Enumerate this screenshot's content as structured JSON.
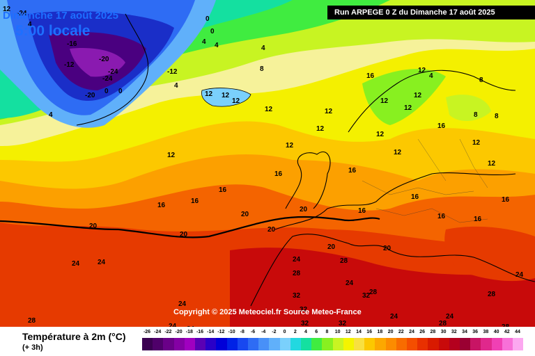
{
  "header": {
    "date": "Dimanche 17 août 2025",
    "time": "5:00 locale",
    "run": "Run ARPEGE 0 Z du Dimanche 17 août 2025"
  },
  "copyright": "Copyright © 2025 Meteociel.fr Source Meteo-France",
  "legend": {
    "title": "Température à 2m (°C)",
    "subtitle": "(+ 3h)",
    "ticks": [
      "-26",
      "-24",
      "-22",
      "-20",
      "-18",
      "-16",
      "-14",
      "-12",
      "-10",
      "-8",
      "-6",
      "-4",
      "-2",
      "0",
      "2",
      "4",
      "6",
      "8",
      "10",
      "12",
      "14",
      "16",
      "18",
      "20",
      "22",
      "24",
      "26",
      "28",
      "30",
      "32",
      "34",
      "36",
      "38",
      "40",
      "42",
      "44"
    ],
    "colors": [
      "#3a0050",
      "#4f006a",
      "#6a0088",
      "#8400a4",
      "#a000c0",
      "#5a00b4",
      "#2a00c8",
      "#0000d8",
      "#0022e6",
      "#1848f0",
      "#2e6cf4",
      "#4890f8",
      "#60b0fa",
      "#7ad0fc",
      "#22d8e0",
      "#14e0a0",
      "#40ec40",
      "#88f020",
      "#c8f422",
      "#f4f400",
      "#f8e040",
      "#fcc800",
      "#fca800",
      "#fc8c00",
      "#f86c00",
      "#f44e00",
      "#e83000",
      "#d81a00",
      "#c80a0a",
      "#b4001e",
      "#9a0032",
      "#c81464",
      "#e0288c",
      "#f040b4",
      "#f870d8",
      "#fca8f0"
    ]
  },
  "map_labels": [
    {
      "t": "12"
    },
    {
      "t": "-24"
    },
    {
      "t": "4"
    },
    {
      "t": "0"
    },
    {
      "t": "0"
    },
    {
      "t": "4"
    },
    {
      "t": "4"
    },
    {
      "t": "4"
    },
    {
      "t": "-16"
    },
    {
      "t": "-20"
    },
    {
      "t": "-12"
    },
    {
      "t": "-24"
    },
    {
      "t": "-24"
    },
    {
      "t": "-12"
    },
    {
      "t": "0"
    },
    {
      "t": "-20"
    },
    {
      "t": "0"
    },
    {
      "t": "4"
    },
    {
      "t": "8"
    },
    {
      "t": "4"
    },
    {
      "t": "12"
    },
    {
      "t": "12"
    },
    {
      "t": "12"
    },
    {
      "t": "12"
    },
    {
      "t": "12"
    },
    {
      "t": "12"
    },
    {
      "t": "12"
    },
    {
      "t": "12"
    },
    {
      "t": "12"
    },
    {
      "t": "12"
    },
    {
      "t": "12"
    },
    {
      "t": "12"
    },
    {
      "t": "16"
    },
    {
      "t": "16"
    },
    {
      "t": "16"
    },
    {
      "t": "16"
    },
    {
      "t": "16"
    },
    {
      "t": "16"
    },
    {
      "t": "16"
    },
    {
      "t": "16"
    },
    {
      "t": "16"
    },
    {
      "t": "16"
    },
    {
      "t": "20"
    },
    {
      "t": "20"
    },
    {
      "t": "20"
    },
    {
      "t": "20"
    },
    {
      "t": "20"
    },
    {
      "t": "20"
    },
    {
      "t": "20"
    },
    {
      "t": "24"
    },
    {
      "t": "24"
    },
    {
      "t": "24"
    },
    {
      "t": "24"
    },
    {
      "t": "24"
    },
    {
      "t": "24"
    },
    {
      "t": "24"
    },
    {
      "t": "24"
    },
    {
      "t": "24"
    },
    {
      "t": "24"
    },
    {
      "t": "28"
    },
    {
      "t": "28"
    },
    {
      "t": "28"
    },
    {
      "t": "28"
    },
    {
      "t": "28"
    },
    {
      "t": "28"
    },
    {
      "t": "28"
    },
    {
      "t": "32"
    },
    {
      "t": "32"
    },
    {
      "t": "32"
    },
    {
      "t": "32"
    },
    {
      "t": "32"
    },
    {
      "t": "8"
    },
    {
      "t": "8"
    },
    {
      "t": "8"
    },
    {
      "t": "4"
    },
    {
      "t": "12"
    },
    {
      "t": "12"
    },
    {
      "t": "16"
    },
    {
      "t": "12"
    },
    {
      "t": "12"
    },
    {
      "t": "16"
    }
  ]
}
